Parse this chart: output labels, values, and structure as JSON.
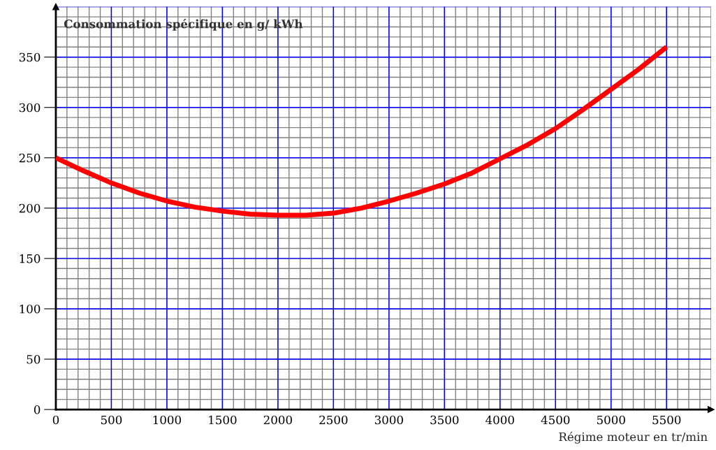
{
  "chart_data": {
    "type": "line",
    "ylabel": "Consommation spécifique en g/ kWh",
    "xlabel": "Régime moteur en tr/min",
    "x": [
      0,
      250,
      500,
      750,
      1000,
      1250,
      1500,
      1750,
      2000,
      2250,
      2500,
      2750,
      3000,
      3250,
      3500,
      3750,
      4000,
      4250,
      4500,
      4750,
      5000,
      5250,
      5500
    ],
    "series": [
      {
        "color": "#ff0000",
        "values": [
          250,
          237,
          225,
          215,
          207,
          201,
          197,
          194,
          193,
          193,
          195,
          200,
          207,
          215,
          224,
          235,
          249,
          263,
          279,
          298,
          318,
          338,
          360
        ]
      }
    ],
    "xlim": [
      0,
      5900
    ],
    "ylim": [
      0,
      400
    ],
    "xticks": [
      0,
      500,
      1000,
      1500,
      2000,
      2500,
      3000,
      3500,
      4000,
      4500,
      5000,
      5500
    ],
    "yticks": [
      0,
      50,
      100,
      150,
      200,
      250,
      300,
      350
    ],
    "grid": true,
    "marker": "none",
    "line_style": "solid"
  }
}
